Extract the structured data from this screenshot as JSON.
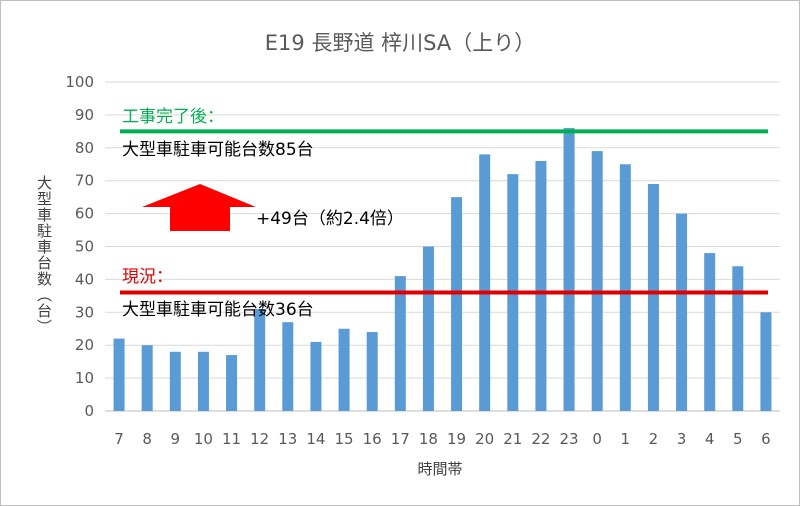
{
  "chart_data": {
    "type": "bar",
    "title": "E19 長野道 梓川SA（上り）",
    "xlabel": "時間帯",
    "ylabel": "大型車駐車台数（台）",
    "ylim": [
      0,
      100
    ],
    "yticks": [
      0,
      10,
      20,
      30,
      40,
      50,
      60,
      70,
      80,
      90,
      100
    ],
    "categories": [
      "7",
      "8",
      "9",
      "10",
      "11",
      "12",
      "13",
      "14",
      "15",
      "16",
      "17",
      "18",
      "19",
      "20",
      "21",
      "22",
      "23",
      "0",
      "1",
      "2",
      "3",
      "4",
      "5",
      "6"
    ],
    "values": [
      22,
      20,
      18,
      18,
      17,
      31,
      27,
      21,
      25,
      24,
      41,
      50,
      65,
      78,
      72,
      76,
      86,
      79,
      75,
      69,
      60,
      48,
      44,
      30
    ],
    "bar_color": "#5b9bd5",
    "grid": true,
    "reference_lines": [
      {
        "value": 85,
        "label": "工事完了後：",
        "sublabel": "大型車駐車可能台数85台",
        "color": "#00b050"
      },
      {
        "value": 36,
        "label": "現況：",
        "sublabel": "大型車駐車可能台数36台",
        "color": "#e00000"
      }
    ],
    "arrow": {
      "label": "+49台（約2.4倍）",
      "color": "#ff0000"
    }
  }
}
